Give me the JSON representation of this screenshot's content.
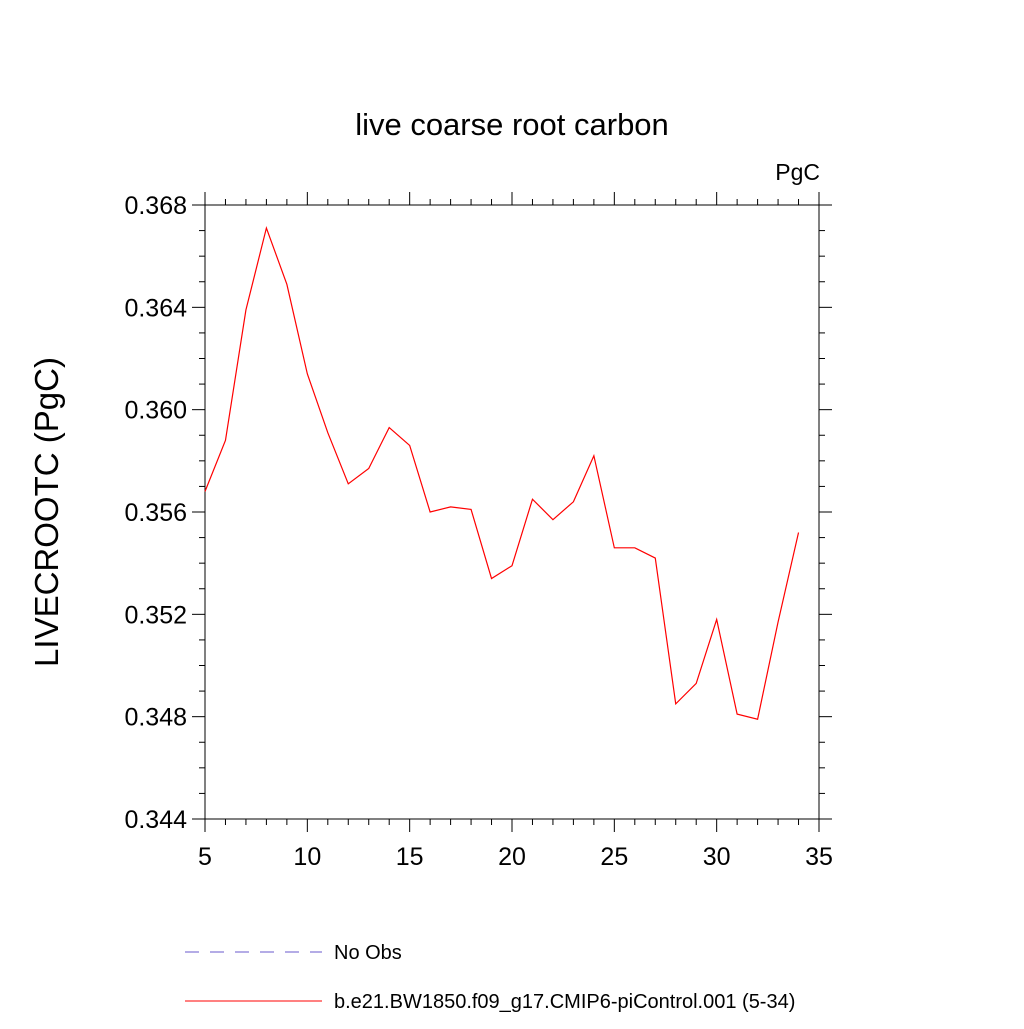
{
  "chart_data": {
    "type": "line",
    "title": "live coarse root carbon",
    "units_label": "PgC",
    "ylabel": "LIVECROOTC  (PgC)",
    "xlabel": "",
    "xlim": [
      5,
      35
    ],
    "ylim": [
      0.344,
      0.368
    ],
    "x_ticks": [
      5,
      10,
      15,
      20,
      25,
      30,
      35
    ],
    "x_tick_labels": [
      "5",
      "10",
      "15",
      "20",
      "25",
      "30",
      "35"
    ],
    "y_ticks": [
      0.344,
      0.348,
      0.352,
      0.356,
      0.36,
      0.364,
      0.368
    ],
    "y_tick_labels": [
      "0.344",
      "0.348",
      "0.352",
      "0.356",
      "0.360",
      "0.364",
      "0.368"
    ],
    "grid": false,
    "legend_position": "bottom",
    "series": [
      {
        "name": "b.e21.BW1850.f09_g17.CMIP6-piControl.001 (5-34)",
        "color": "#ff0000",
        "style": "solid",
        "x": [
          5,
          6,
          7,
          8,
          9,
          10,
          11,
          12,
          13,
          14,
          15,
          16,
          17,
          18,
          19,
          20,
          21,
          22,
          23,
          24,
          25,
          26,
          27,
          28,
          29,
          30,
          31,
          32,
          33,
          34
        ],
        "y": [
          0.3568,
          0.3588,
          0.3639,
          0.3671,
          0.3649,
          0.3614,
          0.3591,
          0.3571,
          0.3577,
          0.3593,
          0.3586,
          0.356,
          0.3562,
          0.3561,
          0.3534,
          0.3539,
          0.3565,
          0.3557,
          0.3564,
          0.3582,
          0.3546,
          0.3546,
          0.3542,
          0.3485,
          0.3493,
          0.3518,
          0.3481,
          0.3479,
          0.3517,
          0.3552
        ]
      }
    ],
    "legend": [
      {
        "label": "No Obs",
        "color": "#6a5acd",
        "style": "dashed"
      },
      {
        "label": "b.e21.BW1850.f09_g17.CMIP6-piControl.001 (5-34)",
        "color": "#ff0000",
        "style": "solid"
      }
    ]
  }
}
